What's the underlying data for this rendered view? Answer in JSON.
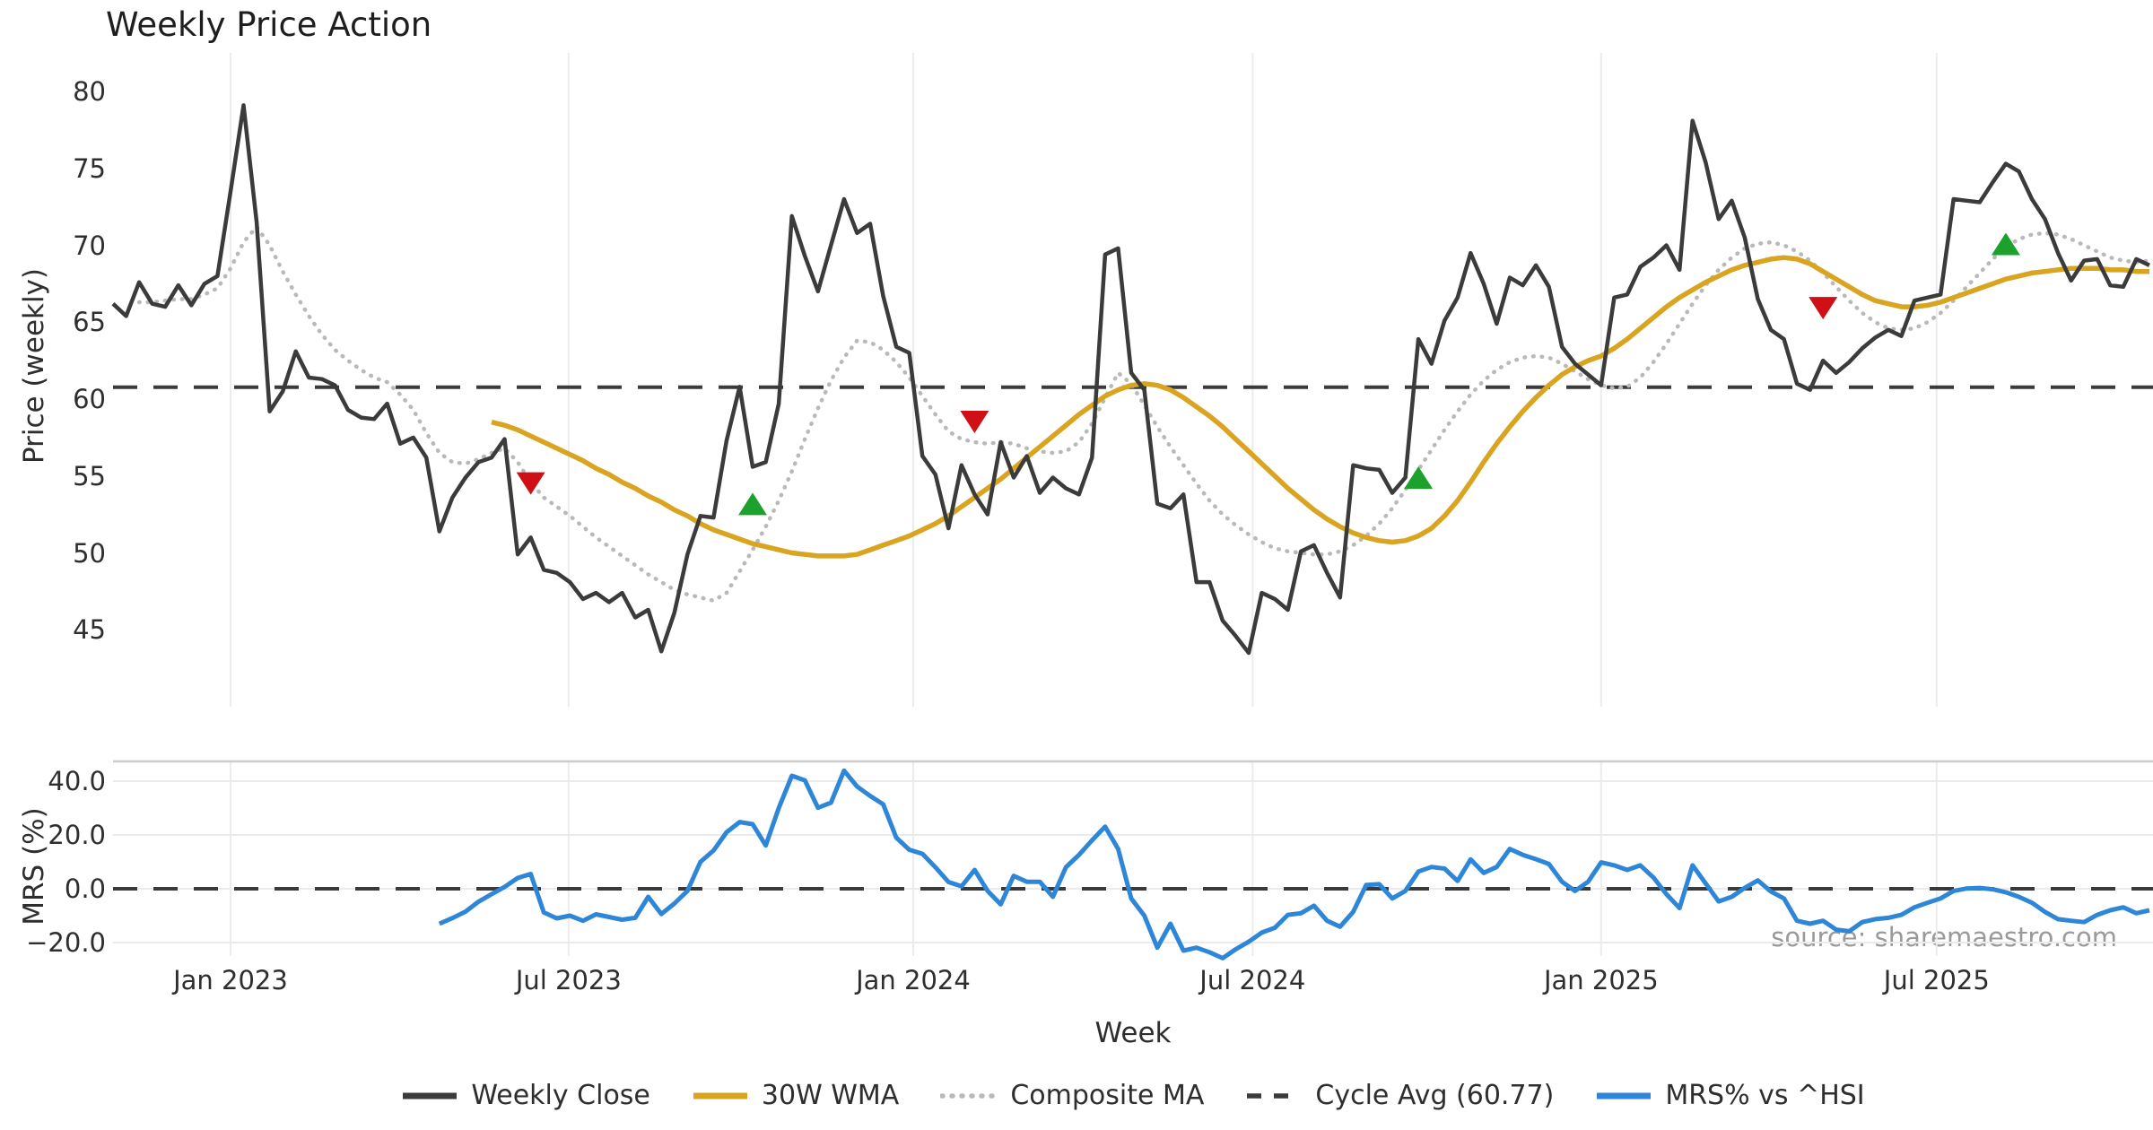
{
  "title": "Weekly Price Action",
  "xlabel": "Week",
  "source": "source: sharemaestro.com",
  "top_panel": {
    "ylabel": "Price (weekly)"
  },
  "bottom_panel": {
    "ylabel": "MRS (%)"
  },
  "xticks": [
    {
      "label": "Jan 2023",
      "week": 9
    },
    {
      "label": "Jul 2023",
      "week": 34.9
    },
    {
      "label": "Jan 2024",
      "week": 61.3
    },
    {
      "label": "Jul 2024",
      "week": 87.3
    },
    {
      "label": "Jan 2025",
      "week": 114
    },
    {
      "label": "Jul 2025",
      "week": 139.7
    }
  ],
  "legend": [
    {
      "label": "Weekly Close",
      "style": "solid",
      "color": "#3b3b3b"
    },
    {
      "label": "30W WMA",
      "style": "solid",
      "color": "#d9a41f"
    },
    {
      "label": "Composite MA",
      "style": "dotted",
      "color": "#b9b9b9"
    },
    {
      "label": "Cycle Avg (60.77)",
      "style": "dashed",
      "color": "#3a3a3a"
    },
    {
      "label": "MRS% vs ^HSI",
      "style": "solid",
      "color": "#2e86d8"
    }
  ],
  "chart_data": {
    "type": "line",
    "title": "Weekly Price Action",
    "xlabel": "Week",
    "x_unit": "weekly, Nov 2022 - Nov 2025",
    "price_panel": {
      "ylabel": "Price (weekly)",
      "ylim": [
        42,
        81
      ],
      "yticks": [
        80,
        75,
        70,
        65,
        60,
        55,
        50,
        45
      ],
      "cycle_avg": 60.77,
      "grid": "vertical-only",
      "series": {
        "weekly_close": {
          "label": "Weekly Close",
          "color": "#3b3b3b",
          "start_week": 0,
          "values": [
            66.2,
            65.4,
            67.6,
            66.2,
            66.0,
            67.4,
            66.1,
            67.5,
            68.0,
            73.5,
            79.1,
            71.5,
            59.2,
            60.5,
            63.1,
            61.4,
            61.3,
            60.9,
            59.3,
            58.8,
            58.7,
            59.7,
            57.1,
            57.5,
            56.2,
            51.4,
            53.6,
            54.9,
            55.9,
            56.2,
            57.4,
            49.9,
            51.0,
            48.9,
            48.7,
            48.1,
            47.0,
            47.4,
            46.8,
            47.4,
            45.8,
            46.3,
            43.6,
            46.1,
            49.9,
            52.4,
            52.3,
            57.3,
            60.8,
            55.6,
            55.9,
            59.7,
            71.9,
            69.3,
            67.0,
            70.0,
            73.0,
            70.8,
            71.4,
            66.7,
            63.4,
            63.0,
            56.3,
            55.1,
            51.6,
            55.7,
            53.8,
            52.5,
            57.2,
            54.9,
            56.3,
            53.9,
            54.9,
            54.2,
            53.8,
            56.2,
            69.4,
            69.8,
            61.7,
            60.6,
            53.2,
            52.9,
            53.8,
            48.1,
            48.1,
            45.6,
            44.6,
            43.5,
            47.4,
            47.0,
            46.3,
            50.1,
            50.5,
            48.7,
            47.1,
            55.7,
            55.5,
            55.4,
            53.9,
            54.9,
            63.9,
            62.3,
            65.1,
            66.6,
            69.5,
            67.5,
            64.9,
            67.9,
            67.4,
            68.7,
            67.3,
            63.4,
            62.3,
            61.6,
            60.9,
            66.6,
            66.8,
            68.6,
            69.2,
            70.0,
            68.4,
            78.1,
            75.4,
            71.7,
            72.9,
            70.5,
            66.5,
            64.5,
            63.9,
            61.0,
            60.6,
            62.5,
            61.7,
            62.4,
            63.3,
            64.0,
            64.5,
            64.1,
            66.4,
            66.6,
            66.8,
            73.0,
            72.9,
            72.8,
            74.1,
            75.3,
            74.8,
            73.0,
            71.7,
            69.5,
            67.7,
            69.0,
            69.1,
            67.4,
            67.3,
            69.1,
            68.7
          ]
        },
        "wma_30w": {
          "label": "30W WMA",
          "color": "#d9a41f",
          "start_week": 29,
          "values": [
            58.5,
            58.3,
            58.0,
            57.6,
            57.2,
            56.8,
            56.4,
            56.0,
            55.5,
            55.1,
            54.6,
            54.2,
            53.7,
            53.3,
            52.8,
            52.4,
            51.9,
            51.5,
            51.2,
            50.9,
            50.6,
            50.4,
            50.2,
            50.0,
            49.9,
            49.8,
            49.8,
            49.8,
            49.9,
            50.2,
            50.5,
            50.8,
            51.1,
            51.5,
            51.9,
            52.4,
            53.0,
            53.6,
            54.2,
            54.8,
            55.5,
            56.2,
            56.9,
            57.6,
            58.3,
            59.0,
            59.6,
            60.2,
            60.6,
            60.9,
            61.0,
            60.9,
            60.6,
            60.1,
            59.5,
            58.9,
            58.2,
            57.4,
            56.6,
            55.8,
            55.0,
            54.2,
            53.5,
            52.8,
            52.2,
            51.7,
            51.3,
            51.0,
            50.8,
            50.7,
            50.8,
            51.1,
            51.6,
            52.4,
            53.4,
            54.6,
            55.9,
            57.1,
            58.2,
            59.2,
            60.1,
            60.9,
            61.6,
            62.1,
            62.5,
            62.8,
            63.3,
            63.9,
            64.6,
            65.3,
            66.0,
            66.6,
            67.1,
            67.6,
            68.0,
            68.4,
            68.7,
            68.9,
            69.1,
            69.2,
            69.1,
            68.8,
            68.3,
            67.8,
            67.3,
            66.8,
            66.4,
            66.2,
            66.0,
            66.0,
            66.1,
            66.3,
            66.6,
            66.9,
            67.2,
            67.5,
            67.8,
            68.0,
            68.2,
            68.3,
            68.4,
            68.5,
            68.5,
            68.5,
            68.4,
            68.4,
            68.3,
            68.3
          ]
        },
        "composite_ma": {
          "label": "Composite MA",
          "color": "#b9b9b9",
          "start_week": 2,
          "values": [
            66.3,
            66.3,
            66.4,
            66.5,
            66.5,
            66.8,
            67.2,
            68.5,
            70.2,
            71.2,
            70.0,
            68.3,
            66.8,
            65.4,
            64.2,
            63.2,
            62.5,
            61.9,
            61.4,
            61.1,
            60.3,
            59.3,
            57.8,
            56.5,
            55.9,
            55.8,
            56.1,
            56.5,
            56.8,
            55.9,
            54.6,
            53.6,
            53.0,
            52.4,
            51.7,
            51.0,
            50.4,
            49.8,
            49.2,
            48.6,
            48.1,
            47.6,
            47.3,
            47.1,
            46.9,
            47.4,
            48.8,
            50.2,
            51.7,
            53.4,
            55.3,
            57.4,
            59.4,
            61.2,
            62.7,
            63.8,
            63.7,
            63.2,
            62.4,
            61.4,
            60.2,
            59.0,
            57.9,
            57.4,
            57.2,
            57.1,
            57.2,
            57.1,
            56.8,
            56.6,
            56.5,
            56.6,
            57.2,
            58.4,
            60.1,
            61.7,
            61.0,
            59.6,
            58.2,
            56.9,
            55.7,
            54.5,
            53.4,
            52.5,
            51.8,
            51.2,
            50.7,
            50.3,
            50.1,
            50.0,
            49.9,
            49.9,
            50.1,
            50.5,
            51.1,
            51.9,
            52.9,
            54.1,
            55.4,
            56.7,
            58.0,
            59.2,
            60.3,
            61.2,
            61.9,
            62.4,
            62.7,
            62.8,
            62.7,
            62.3,
            61.8,
            61.3,
            60.9,
            60.7,
            60.8,
            61.4,
            62.4,
            63.6,
            64.9,
            66.2,
            67.4,
            68.4,
            69.2,
            69.8,
            70.1,
            70.2,
            70.0,
            69.6,
            69.0,
            68.2,
            67.3,
            66.4,
            65.6,
            65.0,
            64.6,
            64.5,
            64.6,
            65.0,
            65.6,
            66.4,
            67.3,
            68.2,
            69.1,
            69.9,
            70.4,
            70.7,
            70.8,
            70.7,
            70.4,
            70.0,
            69.6,
            69.2,
            69.0,
            68.9,
            69.0
          ]
        }
      },
      "buy_markers": {
        "color": "#1ba12c",
        "shape": "triangle-up",
        "points": [
          [
            49,
            53.1
          ],
          [
            100,
            54.8
          ],
          [
            145,
            70.0
          ]
        ]
      },
      "sell_markers": {
        "color": "#cf1016",
        "shape": "triangle-down",
        "points": [
          [
            32,
            54.6
          ],
          [
            66,
            58.6
          ],
          [
            131,
            66.0
          ]
        ]
      }
    },
    "mrs_panel": {
      "ylabel": "MRS (%)",
      "ylim": [
        -30,
        47
      ],
      "yticks": [
        40,
        20,
        0,
        -20
      ],
      "ytick_labels": [
        "40.0",
        "20.0",
        "0.0",
        "−20.0"
      ],
      "zero_line_dashed": 0,
      "series": {
        "mrs_vs_hsi": {
          "label": "MRS% vs ^HSI",
          "color": "#2e86d8",
          "start_week": 25,
          "values": [
            -13.0,
            -10.9,
            -8.5,
            -4.8,
            -2.0,
            0.7,
            4.0,
            5.5,
            -8.8,
            -11.0,
            -10.0,
            -11.9,
            -9.5,
            -10.5,
            -11.5,
            -10.8,
            -3.0,
            -9.4,
            -5.5,
            -0.8,
            10.0,
            14.2,
            21.0,
            24.8,
            24.0,
            16.1,
            30.0,
            42.0,
            40.3,
            30.1,
            32.0,
            43.9,
            38.0,
            34.5,
            31.4,
            19.0,
            14.5,
            13.0,
            8.0,
            2.5,
            0.9,
            7.0,
            -0.8,
            -5.8,
            4.8,
            2.6,
            2.6,
            -3.0,
            8.0,
            12.6,
            18.0,
            23.1,
            14.8,
            -3.6,
            -10.0,
            -21.9,
            -13.0,
            -23.0,
            -21.9,
            -23.6,
            -25.8,
            -22.5,
            -19.7,
            -16.3,
            -14.5,
            -9.7,
            -9.1,
            -6.3,
            -11.9,
            -14.1,
            -8.6,
            1.4,
            1.7,
            -3.6,
            -0.8,
            6.4,
            8.1,
            7.5,
            2.9,
            10.9,
            5.9,
            8.1,
            14.8,
            12.6,
            11.0,
            9.2,
            2.6,
            -0.8,
            2.6,
            9.8,
            8.7,
            7.0,
            8.7,
            4.2,
            -2.0,
            -7.2,
            8.7,
            2.0,
            -4.7,
            -3.0,
            0.3,
            3.1,
            -1.0,
            -3.6,
            -11.9,
            -13.0,
            -11.9,
            -15.2,
            -15.8,
            -12.4,
            -11.3,
            -10.8,
            -9.7,
            -6.9,
            -5.2,
            -3.6,
            -0.8,
            0.1,
            0.3,
            -0.2,
            -1.3,
            -3.0,
            -5.2,
            -8.6,
            -11.3,
            -11.9,
            -12.4,
            -9.7,
            -8.0,
            -6.9,
            -9.1,
            -8.0
          ]
        }
      }
    }
  }
}
